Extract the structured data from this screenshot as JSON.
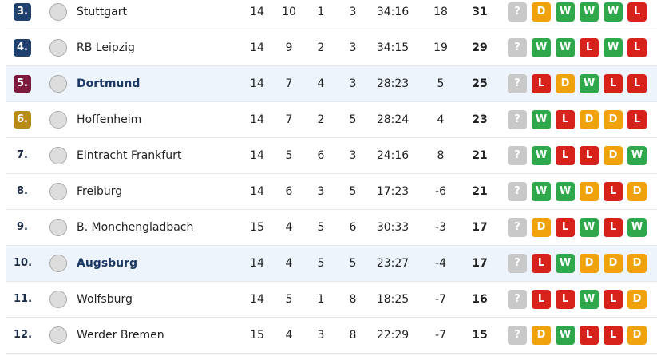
{
  "table": {
    "rows": [
      {
        "rank": "3.",
        "team": "Stuttgart",
        "played": 14,
        "won": 10,
        "drawn": 1,
        "lost": 3,
        "goals": "34:16",
        "diff": 18,
        "points": 31,
        "form": [
          "?",
          "D",
          "W",
          "W",
          "W",
          "L"
        ]
      },
      {
        "rank": "4.",
        "team": "RB Leipzig",
        "played": 14,
        "won": 9,
        "drawn": 2,
        "lost": 3,
        "goals": "34:15",
        "diff": 19,
        "points": 29,
        "form": [
          "?",
          "W",
          "W",
          "L",
          "W",
          "L"
        ]
      },
      {
        "rank": "5.",
        "team": "Dortmund",
        "played": 14,
        "won": 7,
        "drawn": 4,
        "lost": 3,
        "goals": "28:23",
        "diff": 5,
        "points": 25,
        "form": [
          "?",
          "L",
          "D",
          "W",
          "L",
          "L"
        ]
      },
      {
        "rank": "6.",
        "team": "Hoffenheim",
        "played": 14,
        "won": 7,
        "drawn": 2,
        "lost": 5,
        "goals": "28:24",
        "diff": 4,
        "points": 23,
        "form": [
          "?",
          "W",
          "L",
          "D",
          "D",
          "L"
        ]
      },
      {
        "rank": "7.",
        "team": "Eintracht Frankfurt",
        "played": 14,
        "won": 5,
        "drawn": 6,
        "lost": 3,
        "goals": "24:16",
        "diff": 8,
        "points": 21,
        "form": [
          "?",
          "W",
          "L",
          "L",
          "D",
          "W"
        ]
      },
      {
        "rank": "8.",
        "team": "Freiburg",
        "played": 14,
        "won": 6,
        "drawn": 3,
        "lost": 5,
        "goals": "17:23",
        "diff": -6,
        "points": 21,
        "form": [
          "?",
          "W",
          "W",
          "D",
          "L",
          "D"
        ]
      },
      {
        "rank": "9.",
        "team": "B. Monchengladbach",
        "played": 15,
        "won": 4,
        "drawn": 5,
        "lost": 6,
        "goals": "30:33",
        "diff": -3,
        "points": 17,
        "form": [
          "?",
          "D",
          "L",
          "W",
          "L",
          "W"
        ]
      },
      {
        "rank": "10.",
        "team": "Augsburg",
        "played": 14,
        "won": 4,
        "drawn": 5,
        "lost": 5,
        "goals": "23:27",
        "diff": -4,
        "points": 17,
        "form": [
          "?",
          "L",
          "W",
          "D",
          "D",
          "D"
        ]
      },
      {
        "rank": "11.",
        "team": "Wolfsburg",
        "played": 14,
        "won": 5,
        "drawn": 1,
        "lost": 8,
        "goals": "18:25",
        "diff": -7,
        "points": 16,
        "form": [
          "?",
          "L",
          "L",
          "W",
          "L",
          "D"
        ]
      },
      {
        "rank": "12.",
        "team": "Werder Bremen",
        "played": 15,
        "won": 4,
        "drawn": 3,
        "lost": 8,
        "goals": "22:29",
        "diff": -7,
        "points": 15,
        "form": [
          "?",
          "D",
          "W",
          "L",
          "L",
          "D"
        ]
      }
    ]
  }
}
